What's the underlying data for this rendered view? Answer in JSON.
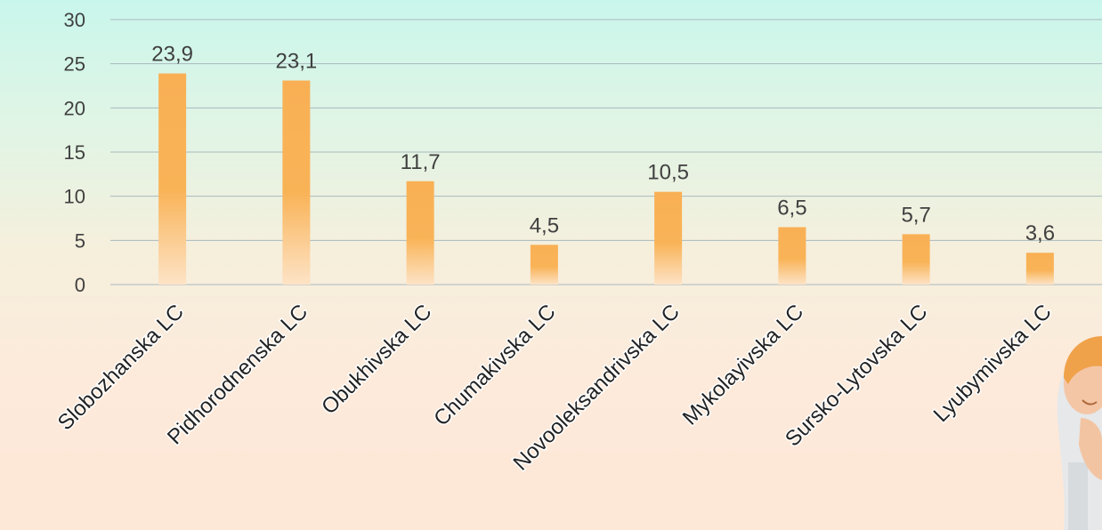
{
  "chart_data": {
    "type": "bar",
    "title": "",
    "xlabel": "",
    "ylabel": "",
    "ylim": [
      0,
      30
    ],
    "yticks": [
      0,
      5,
      10,
      15,
      20,
      25,
      30
    ],
    "grid": true,
    "legend": "none",
    "categories": [
      "Slobozhanska LC",
      "Pidhorodnenska LC",
      "Obukhivska LC",
      "Chumakivska LC",
      "Novooleksandrivska LC",
      "Mykolayivska LC",
      "Sursko-Lytovska LC",
      "Lyubymivska LC"
    ],
    "values": [
      23.9,
      23.1,
      11.7,
      4.5,
      10.5,
      6.5,
      5.7,
      3.6
    ],
    "data_labels": [
      "23,9",
      "23,1",
      "11,7",
      "4,5",
      "10,5",
      "6,5",
      "5,7",
      "3,6"
    ],
    "colors": {
      "bar": "#f9b055",
      "bar_fade": "#fde3c6",
      "grid": "#aab8bf",
      "text": "#404040"
    }
  }
}
